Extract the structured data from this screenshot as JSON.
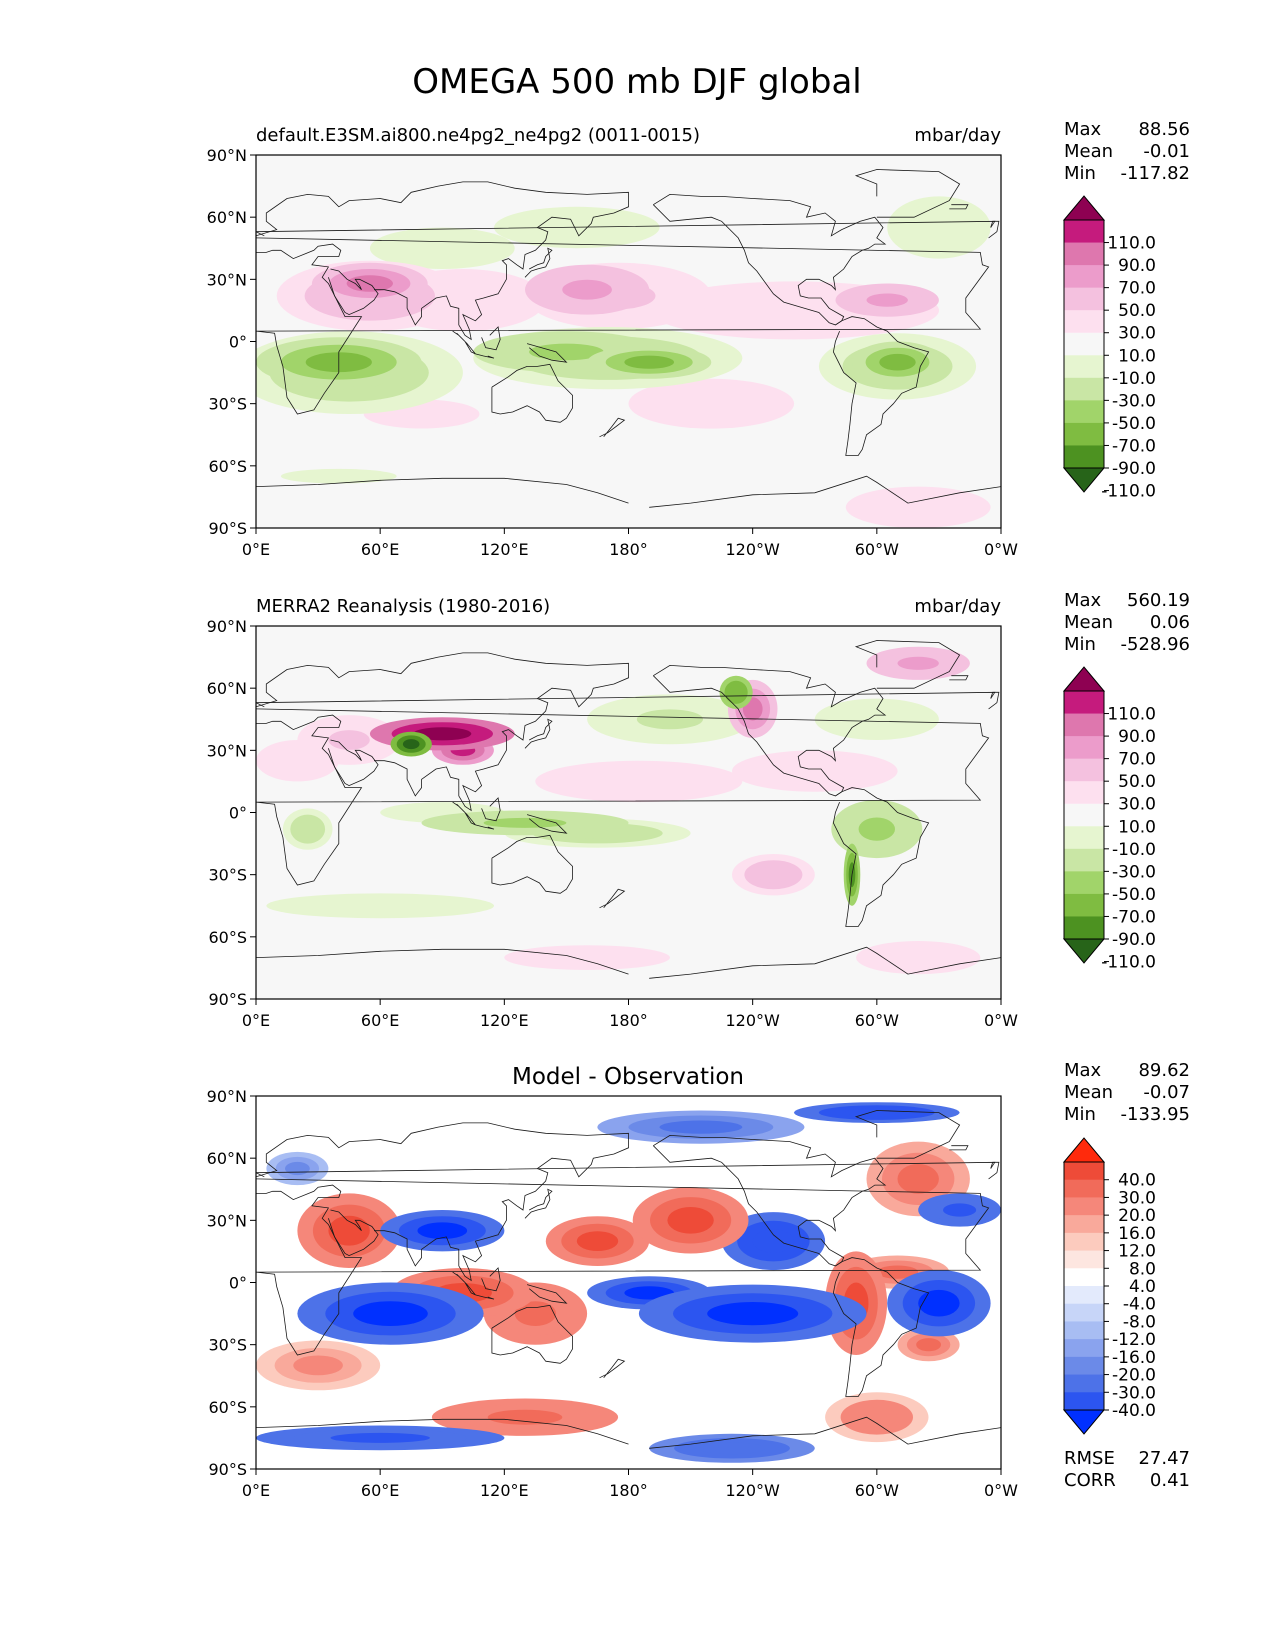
{
  "figure": {
    "title": "OMEGA 500 mb DJF global"
  },
  "axes": {
    "lat_ticks": [
      "90°N",
      "60°N",
      "30°N",
      "0°",
      "30°S",
      "60°S",
      "90°S"
    ],
    "lon_ticks": [
      "0°E",
      "60°E",
      "120°E",
      "180°",
      "120°W",
      "60°W",
      "0°W"
    ]
  },
  "colors": {
    "background": "#f7f7f7",
    "diff_background": "#ffffff",
    "coast": "#1a1a1a",
    "omega_levels": [
      "#276419",
      "#4d9221",
      "#7fbc41",
      "#a1d46a",
      "#c9e6a5",
      "#e6f5d0",
      "#f7f7f7",
      "#fde0ef",
      "#f4c1df",
      "#ec9ccb",
      "#de77ae",
      "#c51b7d",
      "#8e0152"
    ],
    "diff_levels": [
      "#0030ff",
      "#2c55f0",
      "#4d72e8",
      "#6b8ae8",
      "#8aa3ee",
      "#a8bdf3",
      "#c7d5f8",
      "#e3eafc",
      "#ffffff",
      "#fde6e0",
      "#fccbbe",
      "#f9a99b",
      "#f5877a",
      "#f16b5a",
      "#ee4b38",
      "#ff2a0c"
    ]
  },
  "chart_data": [
    {
      "type": "heatmap",
      "id": "model",
      "title": "default.E3SM.ai800.ne4pg2_ne4pg2 (0011-0015)",
      "units": "mbar/day",
      "xlim": [
        0,
        360
      ],
      "ylim": [
        -90,
        90
      ],
      "stats": {
        "max_label": "Max",
        "max": "88.56",
        "mean_label": "Mean",
        "mean": "-0.01",
        "min_label": "Min",
        "min": "-117.82"
      },
      "colorbar": {
        "levels": [
          "110.0",
          "90.0",
          "70.0",
          "50.0",
          "30.0",
          "10.0",
          "-10.0",
          "-30.0",
          "-50.0",
          "-70.0",
          "-90.0",
          "-110.0"
        ]
      },
      "features": [
        {
          "lon": 55,
          "lat": 28,
          "rx": 28,
          "ry": 10,
          "v": 70
        },
        {
          "lon": 55,
          "lat": 22,
          "rx": 45,
          "ry": 17,
          "v": 45
        },
        {
          "lon": 160,
          "lat": 25,
          "rx": 30,
          "ry": 12,
          "v": 55
        },
        {
          "lon": 175,
          "lat": 22,
          "rx": 45,
          "ry": 16,
          "v": 30
        },
        {
          "lon": 305,
          "lat": 20,
          "rx": 25,
          "ry": 8,
          "v": 50
        },
        {
          "lon": 260,
          "lat": 15,
          "rx": 70,
          "ry": 14,
          "v": 25
        },
        {
          "lon": 100,
          "lat": 20,
          "rx": 40,
          "ry": 15,
          "v": 20
        },
        {
          "lon": 40,
          "lat": -10,
          "rx": 40,
          "ry": 12,
          "v": -75
        },
        {
          "lon": 45,
          "lat": -15,
          "rx": 55,
          "ry": 20,
          "v": -45
        },
        {
          "lon": 150,
          "lat": -5,
          "rx": 45,
          "ry": 10,
          "v": -55
        },
        {
          "lon": 190,
          "lat": -10,
          "rx": 30,
          "ry": 8,
          "v": -80
        },
        {
          "lon": 170,
          "lat": -8,
          "rx": 65,
          "ry": 15,
          "v": -40
        },
        {
          "lon": 310,
          "lat": -10,
          "rx": 22,
          "ry": 10,
          "v": -80
        },
        {
          "lon": 310,
          "lat": -12,
          "rx": 38,
          "ry": 16,
          "v": -45
        },
        {
          "lon": 155,
          "lat": 55,
          "rx": 40,
          "ry": 10,
          "v": -20
        },
        {
          "lon": 90,
          "lat": 45,
          "rx": 35,
          "ry": 10,
          "v": -20
        },
        {
          "lon": 330,
          "lat": 55,
          "rx": 25,
          "ry": 15,
          "v": -20
        },
        {
          "lon": 40,
          "lat": -65,
          "rx": 40,
          "ry": 5,
          "v": -15
        },
        {
          "lon": 220,
          "lat": -30,
          "rx": 40,
          "ry": 12,
          "v": 20
        },
        {
          "lon": 80,
          "lat": -35,
          "rx": 40,
          "ry": 10,
          "v": 15
        },
        {
          "lon": 320,
          "lat": -80,
          "rx": 35,
          "ry": 10,
          "v": 20
        }
      ]
    },
    {
      "type": "heatmap",
      "id": "obs",
      "title": "MERRA2 Reanalysis (1980-2016)",
      "units": "mbar/day",
      "xlim": [
        0,
        360
      ],
      "ylim": [
        -90,
        90
      ],
      "stats": {
        "max_label": "Max",
        "max": "560.19",
        "mean_label": "Mean",
        "mean": "0.06",
        "min_label": "Min",
        "min": "-528.96"
      },
      "colorbar": {
        "levels": [
          "110.0",
          "90.0",
          "70.0",
          "50.0",
          "30.0",
          "10.0",
          "-10.0",
          "-30.0",
          "-50.0",
          "-70.0",
          "-90.0",
          "-110.0"
        ]
      },
      "features": [
        {
          "lon": 90,
          "lat": 38,
          "rx": 35,
          "ry": 8,
          "v": 120
        },
        {
          "lon": 75,
          "lat": 33,
          "rx": 10,
          "ry": 6,
          "v": -120
        },
        {
          "lon": 100,
          "lat": 30,
          "rx": 15,
          "ry": 7,
          "v": 100
        },
        {
          "lon": 45,
          "lat": 35,
          "rx": 25,
          "ry": 12,
          "v": 35
        },
        {
          "lon": 20,
          "lat": 25,
          "rx": 20,
          "ry": 10,
          "v": 25
        },
        {
          "lon": 240,
          "lat": 50,
          "rx": 12,
          "ry": 14,
          "v": 80
        },
        {
          "lon": 232,
          "lat": 58,
          "rx": 8,
          "ry": 8,
          "v": -90
        },
        {
          "lon": 320,
          "lat": 72,
          "rx": 25,
          "ry": 8,
          "v": 60
        },
        {
          "lon": 270,
          "lat": 20,
          "rx": 40,
          "ry": 10,
          "v": 20
        },
        {
          "lon": 185,
          "lat": 15,
          "rx": 50,
          "ry": 10,
          "v": 20
        },
        {
          "lon": 130,
          "lat": -5,
          "rx": 50,
          "ry": 6,
          "v": -60
        },
        {
          "lon": 165,
          "lat": -10,
          "rx": 45,
          "ry": 7,
          "v": -50
        },
        {
          "lon": 90,
          "lat": 0,
          "rx": 30,
          "ry": 5,
          "v": -30
        },
        {
          "lon": 300,
          "lat": -8,
          "rx": 22,
          "ry": 14,
          "v": -60
        },
        {
          "lon": 288,
          "lat": -30,
          "rx": 4,
          "ry": 15,
          "v": -110
        },
        {
          "lon": 25,
          "lat": -8,
          "rx": 12,
          "ry": 10,
          "v": -45
        },
        {
          "lon": 200,
          "lat": 45,
          "rx": 40,
          "ry": 12,
          "v": -35
        },
        {
          "lon": 300,
          "lat": 45,
          "rx": 30,
          "ry": 10,
          "v": -25
        },
        {
          "lon": 60,
          "lat": -45,
          "rx": 55,
          "ry": 6,
          "v": -20
        },
        {
          "lon": 250,
          "lat": -30,
          "rx": 20,
          "ry": 10,
          "v": 40
        },
        {
          "lon": 160,
          "lat": -70,
          "rx": 40,
          "ry": 6,
          "v": 25
        },
        {
          "lon": 320,
          "lat": -70,
          "rx": 30,
          "ry": 8,
          "v": 25
        }
      ]
    },
    {
      "type": "heatmap",
      "id": "diff",
      "title": "Model - Observation",
      "xlim": [
        0,
        360
      ],
      "ylim": [
        -90,
        90
      ],
      "stats": {
        "max_label": "Max",
        "max": "89.62",
        "mean_label": "Mean",
        "mean": "-0.07",
        "min_label": "Min",
        "min": "-133.95"
      },
      "colorbar": {
        "levels": [
          "40.0",
          "30.0",
          "20.0",
          "16.0",
          "12.0",
          "8.0",
          "4.0",
          "-4.0",
          "-8.0",
          "-12.0",
          "-16.0",
          "-20.0",
          "-30.0",
          "-40.0"
        ]
      },
      "metrics": {
        "rmse_label": "RMSE",
        "rmse": "27.47",
        "corr_label": "CORR",
        "corr": "0.41"
      },
      "features": [
        {
          "lon": 45,
          "lat": 25,
          "rx": 25,
          "ry": 18,
          "v": 45
        },
        {
          "lon": 100,
          "lat": -5,
          "rx": 35,
          "ry": 12,
          "v": 45
        },
        {
          "lon": 135,
          "lat": -15,
          "rx": 25,
          "ry": 15,
          "v": 35
        },
        {
          "lon": 165,
          "lat": 20,
          "rx": 25,
          "ry": 12,
          "v": 40
        },
        {
          "lon": 210,
          "lat": 30,
          "rx": 28,
          "ry": 16,
          "v": 45
        },
        {
          "lon": 290,
          "lat": -10,
          "rx": 15,
          "ry": 25,
          "v": 45
        },
        {
          "lon": 320,
          "lat": 50,
          "rx": 25,
          "ry": 18,
          "v": 30
        },
        {
          "lon": 310,
          "lat": 5,
          "rx": 25,
          "ry": 8,
          "v": 30
        },
        {
          "lon": 130,
          "lat": -65,
          "rx": 45,
          "ry": 9,
          "v": 35
        },
        {
          "lon": 300,
          "lat": -65,
          "rx": 25,
          "ry": 12,
          "v": 25
        },
        {
          "lon": 325,
          "lat": -30,
          "rx": 15,
          "ry": 8,
          "v": 30
        },
        {
          "lon": 30,
          "lat": -40,
          "rx": 30,
          "ry": 12,
          "v": 20
        },
        {
          "lon": 90,
          "lat": 25,
          "rx": 30,
          "ry": 10,
          "v": -45
        },
        {
          "lon": 65,
          "lat": -15,
          "rx": 45,
          "ry": 15,
          "v": -50
        },
        {
          "lon": 240,
          "lat": -15,
          "rx": 55,
          "ry": 14,
          "v": -50
        },
        {
          "lon": 190,
          "lat": -5,
          "rx": 30,
          "ry": 8,
          "v": -45
        },
        {
          "lon": 250,
          "lat": 20,
          "rx": 25,
          "ry": 14,
          "v": -40
        },
        {
          "lon": 330,
          "lat": -10,
          "rx": 25,
          "ry": 16,
          "v": -45
        },
        {
          "lon": 340,
          "lat": 35,
          "rx": 20,
          "ry": 8,
          "v": -35
        },
        {
          "lon": 215,
          "lat": 75,
          "rx": 50,
          "ry": 8,
          "v": -25
        },
        {
          "lon": 300,
          "lat": 82,
          "rx": 40,
          "ry": 5,
          "v": -40
        },
        {
          "lon": 60,
          "lat": -75,
          "rx": 60,
          "ry": 6,
          "v": -35
        },
        {
          "lon": 230,
          "lat": -80,
          "rx": 40,
          "ry": 7,
          "v": -30
        },
        {
          "lon": 20,
          "lat": 55,
          "rx": 15,
          "ry": 8,
          "v": -20
        }
      ]
    }
  ]
}
